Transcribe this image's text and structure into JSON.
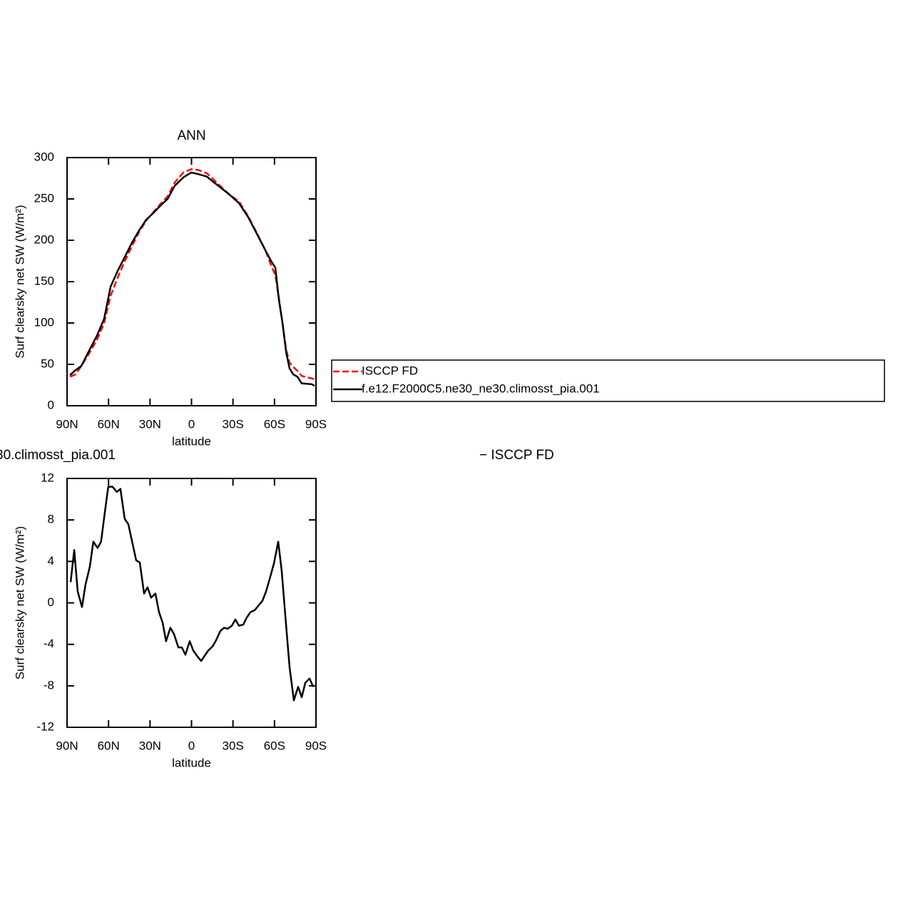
{
  "chart_data": [
    {
      "type": "line",
      "title": "ANN",
      "ylabel": "Surf clearsky net SW (W/m²)",
      "xlabel": "latitude",
      "xlim": [
        90,
        -90
      ],
      "ylim": [
        0,
        300
      ],
      "xticks": [
        {
          "value": 90,
          "label": "90N"
        },
        {
          "value": 60,
          "label": "60N"
        },
        {
          "value": 30,
          "label": "30N"
        },
        0,
        {
          "value": -30,
          "label": "30S"
        },
        {
          "value": -60,
          "label": "60S"
        },
        {
          "value": -90,
          "label": "90S"
        }
      ],
      "yticks": [
        0,
        50,
        100,
        150,
        200,
        250,
        300
      ],
      "x": [
        87.9,
        83.8,
        79.7,
        74.5,
        68.3,
        63.2,
        58.5,
        53.4,
        48.2,
        43.1,
        37.9,
        32.7,
        27.6,
        22.4,
        17.3,
        12.1,
        5.9,
        0.2,
        -4.9,
        -11.1,
        -16.2,
        -22.4,
        -27.6,
        -34.3,
        -41.0,
        -47.2,
        -53.4,
        -57.5,
        -60.6,
        -63.2,
        -65.8,
        -68.4,
        -70.9,
        -73.5,
        -76.6,
        -79.7,
        -86.9,
        -89.0
      ],
      "series": [
        {
          "name": "ISCCP FD",
          "color": "#ff0000",
          "dashed": true,
          "values": [
            35,
            38,
            48,
            62,
            80,
            100,
            133,
            155,
            175,
            193,
            210,
            224,
            234,
            244,
            253,
            270,
            282,
            286,
            285,
            281,
            273,
            263,
            255,
            247,
            229,
            209,
            188,
            170,
            158,
            130,
            100,
            68,
            52,
            47,
            42,
            36,
            33,
            32
          ]
        },
        {
          "name": "f.e12.F2000C5.ne30_ne30.climosst_pia.001",
          "color": "#000000",
          "dashed": false,
          "values": [
            37,
            43,
            48,
            65,
            85,
            105,
            144,
            163,
            180,
            197,
            212,
            225,
            233,
            242,
            250,
            266,
            276,
            282,
            280,
            277,
            270,
            262,
            255,
            245,
            228,
            208,
            188,
            175,
            167,
            128,
            100,
            65,
            45,
            38,
            35,
            27,
            26,
            24
          ]
        }
      ]
    },
    {
      "type": "line",
      "title_segments": [
        "30.climosst_pia.001",
        "− ISCCP FD"
      ],
      "ylabel": "Surf clearsky net SW (W/m²)",
      "xlabel": "latitude",
      "xlim": [
        90,
        -90
      ],
      "ylim": [
        -12,
        12
      ],
      "xticks": [
        {
          "value": 90,
          "label": "90N"
        },
        {
          "value": 60,
          "label": "60N"
        },
        {
          "value": 30,
          "label": "30N"
        },
        0,
        {
          "value": -30,
          "label": "30S"
        },
        {
          "value": -60,
          "label": "60S"
        },
        {
          "value": -90,
          "label": "90S"
        }
      ],
      "yticks": [
        -12,
        -8,
        -4,
        0,
        4,
        8,
        12
      ],
      "x": [
        87.4,
        84.8,
        82.3,
        79.2,
        76.6,
        73.5,
        71.0,
        67.9,
        65.4,
        62.8,
        60.2,
        57.1,
        54.0,
        51.4,
        48.3,
        45.7,
        43.1,
        40.0,
        37.4,
        34.3,
        31.8,
        29.2,
        26.1,
        23.5,
        20.9,
        18.4,
        15.3,
        12.7,
        9.5,
        7.0,
        4.4,
        1.3,
        -1.3,
        -3.9,
        -7.0,
        -9.5,
        -12.1,
        -15.2,
        -17.8,
        -20.9,
        -23.5,
        -26.1,
        -29.2,
        -31.7,
        -34.3,
        -37.4,
        -40.0,
        -42.6,
        -45.7,
        -48.2,
        -51.3,
        -53.9,
        -56.5,
        -59.6,
        -62.7,
        -65.2,
        -68.3,
        -70.9,
        -74.0,
        -77.1,
        -79.7,
        -82.3,
        -85.4,
        -88.0
      ],
      "series": [
        {
          "color": "#000000",
          "dashed": false,
          "values": [
            2.0,
            5.1,
            1.1,
            -0.4,
            1.8,
            3.5,
            5.9,
            5.3,
            5.9,
            8.6,
            11.2,
            11.2,
            10.7,
            11.0,
            8.1,
            7.6,
            6.0,
            4.1,
            3.9,
            0.9,
            1.5,
            0.5,
            0.9,
            -0.9,
            -1.9,
            -3.7,
            -2.4,
            -3.0,
            -4.3,
            -4.3,
            -5.0,
            -3.7,
            -4.6,
            -5.1,
            -5.6,
            -5.1,
            -4.6,
            -4.2,
            -3.6,
            -2.7,
            -2.4,
            -2.5,
            -2.2,
            -1.6,
            -2.2,
            -2.1,
            -1.4,
            -0.9,
            -0.7,
            -0.3,
            0.2,
            1.1,
            2.3,
            3.8,
            5.9,
            3.1,
            -2.0,
            -6.2,
            -9.4,
            -8.1,
            -9.1,
            -7.7,
            -7.3,
            -8.1
          ]
        }
      ]
    }
  ]
}
